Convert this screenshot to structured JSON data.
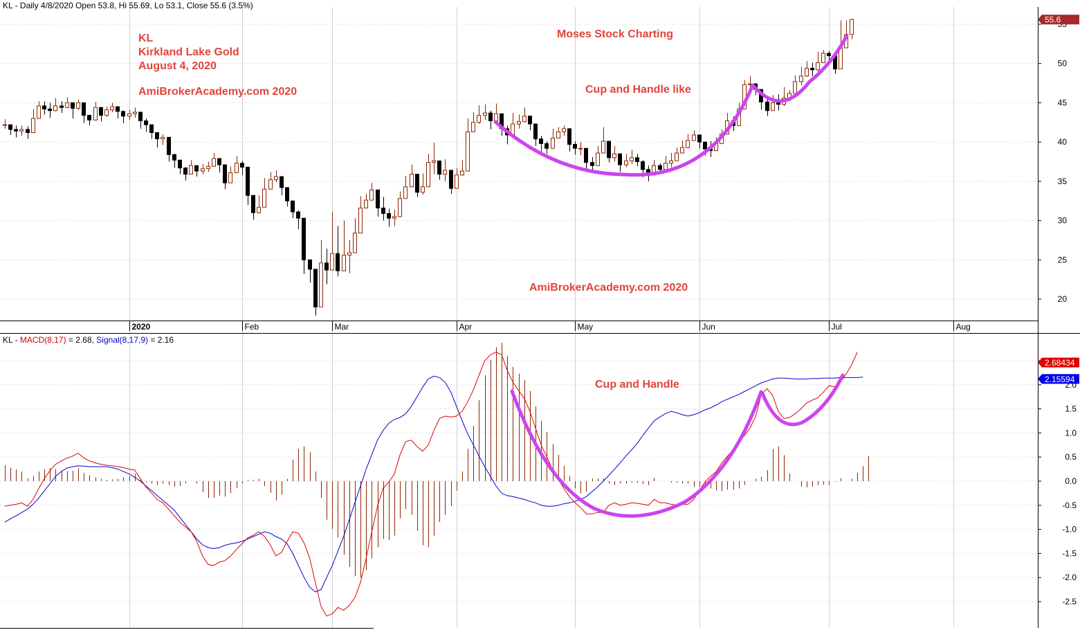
{
  "header": {
    "price_info": "KL - Daily 4/8/2020 Open 53.8, Hi 55.69, Lo 53.1, Close 55.6 (3.5%)",
    "macd_prefix": "KL - ",
    "macd_label": "MACD(8,17)",
    "macd_value": " = 2.68, ",
    "signal_label": "Signal(8,17,9)",
    "signal_value": " = 2.16"
  },
  "annotations": {
    "line1": "KL",
    "line2": "Kirkland Lake Gold",
    "line3": "August 4, 2020",
    "brand1": "AmiBrokerAcademy.com  2020",
    "site_title": "Moses Stock Charting",
    "pattern_upper": "Cup and Handle like",
    "brand2": "AmiBrokerAcademy.com  2020",
    "pattern_lower": "Cup and Handle"
  },
  "colors": {
    "up_candle": "#8b2500",
    "down_candle": "#000000",
    "macd_line": "#e00000",
    "signal_line": "#0000cc",
    "histogram": "#8b2500",
    "pattern_curve": "#cc44ee",
    "annotation_text": "#e0443c",
    "last_price_badge": "#a52a2a",
    "macd_badge": "#e00000",
    "signal_badge": "#0000ee"
  },
  "chart_data": [
    {
      "type": "candlestick",
      "ylim": [
        17.5,
        57
      ],
      "yticks": [
        "55",
        "50",
        "45",
        "40",
        "35",
        "30",
        "25",
        "20"
      ],
      "x_labels": [
        "2020",
        "Feb",
        "Mar",
        "Apr",
        "May",
        "Jun",
        "Jul",
        "Aug"
      ],
      "last_price_badge": "55.6",
      "close": [
        42.2,
        41.6,
        41.4,
        41.6,
        41.2,
        43.0,
        44.6,
        44.2,
        44.0,
        44.6,
        44.4,
        45.0,
        44.3,
        45.0,
        43.4,
        42.8,
        44.4,
        43.4,
        44.1,
        44.5,
        43.9,
        43.3,
        43.6,
        43.8,
        42.7,
        42.2,
        41.2,
        40.4,
        40.6,
        38.4,
        37.7,
        36.7,
        35.9,
        37.0,
        36.3,
        36.6,
        36.9,
        37.9,
        37.1,
        34.8,
        36.1,
        37.3,
        36.8,
        33.2,
        31.0,
        31.7,
        34.0,
        35.2,
        35.6,
        34.2,
        32.5,
        31.1,
        30.3,
        25.0,
        23.8,
        19.0,
        24.6,
        23.7,
        25.8,
        23.6,
        25.6,
        25.9,
        28.4,
        31.6,
        32.6,
        33.9,
        31.6,
        30.9,
        30.3,
        30.5,
        32.8,
        34.3,
        35.9,
        33.6,
        34.3,
        37.4,
        37.6,
        35.9,
        36.4,
        34.1,
        35.8,
        36.3,
        41.3,
        42.5,
        43.4,
        43.7,
        42.7,
        43.6,
        41.7,
        40.9,
        42.3,
        42.6,
        43.3,
        42.3,
        40.4,
        39.8,
        39.2,
        40.5,
        41.3,
        41.7,
        39.7,
        39.2,
        39.2,
        37.4,
        37.0,
        38.6,
        40.1,
        38.0,
        38.5,
        37.1,
        37.6,
        38.0,
        37.5,
        36.5,
        35.8,
        37.0,
        36.5,
        37.3,
        37.6,
        38.6,
        39.3,
        40.2,
        40.9,
        40.0,
        39.1,
        38.9,
        39.8,
        41.0,
        42.7,
        42.1,
        44.2,
        47.3,
        47.4,
        46.7,
        45.1,
        44.0,
        45.0,
        44.8,
        45.6,
        46.2,
        47.7,
        48.4,
        49.4,
        49.2,
        50.1,
        51.3,
        51.0,
        49.3,
        52.0,
        53.7,
        55.6
      ],
      "high": [
        42.9,
        42.2,
        42.1,
        42.1,
        42.0,
        44.2,
        45.2,
        45.2,
        45.0,
        45.6,
        45.2,
        45.7,
        45.0,
        45.4,
        44.1,
        43.5,
        45.1,
        44.1,
        44.5,
        45.0,
        44.4,
        44.0,
        44.1,
        44.4,
        43.5,
        43.0,
        42.0,
        41.1,
        41.0,
        39.3,
        38.5,
        37.5,
        36.8,
        37.7,
        37.0,
        37.2,
        37.5,
        38.6,
        37.8,
        35.9,
        36.9,
        38.2,
        37.6,
        34.4,
        32.5,
        33.2,
        35.4,
        36.2,
        36.4,
        35.6,
        33.9,
        32.5,
        31.3,
        26.2,
        24.9,
        20.2,
        27.5,
        26.4,
        31.1,
        29.3,
        30.0,
        27.5,
        30.3,
        33.1,
        33.4,
        34.8,
        32.7,
        33.0,
        31.5,
        31.4,
        33.7,
        35.7,
        37.1,
        35.0,
        36.0,
        38.5,
        39.9,
        37.0,
        37.8,
        35.6,
        36.7,
        37.7,
        43.0,
        43.8,
        44.7,
        44.8,
        44.0,
        44.9,
        43.0,
        42.1,
        43.7,
        43.5,
        44.4,
        43.2,
        41.6,
        40.8,
        40.1,
        41.7,
        41.9,
        42.1,
        40.7,
        40.1,
        40.0,
        38.6,
        38.1,
        39.5,
        41.9,
        39.2,
        39.5,
        38.4,
        38.5,
        39.0,
        38.5,
        37.7,
        37.0,
        37.7,
        37.3,
        38.2,
        38.6,
        39.3,
        40.2,
        41.0,
        41.5,
        40.7,
        39.7,
        40.1,
        40.6,
        41.6,
        43.7,
        43.3,
        45.0,
        47.9,
        48.4,
        47.5,
        46.4,
        45.5,
        46.0,
        46.1,
        47.0,
        46.6,
        48.5,
        49.6,
        50.3,
        50.1,
        51.5,
        51.7,
        51.6,
        50.7,
        55.5,
        55.5,
        55.69
      ],
      "low": [
        41.7,
        40.9,
        40.6,
        40.8,
        40.4,
        42.3,
        43.5,
        43.5,
        43.1,
        43.9,
        43.7,
        44.3,
        43.0,
        44.1,
        42.4,
        42.1,
        43.5,
        42.6,
        43.2,
        43.8,
        43.0,
        42.4,
        42.8,
        43.1,
        41.7,
        41.3,
        40.4,
        39.3,
        39.6,
        37.5,
        36.7,
        35.9,
        35.1,
        36.1,
        35.6,
        35.9,
        36.2,
        37.1,
        36.1,
        34.0,
        35.1,
        36.5,
        35.8,
        32.0,
        30.1,
        30.9,
        33.0,
        34.6,
        34.9,
        33.2,
        31.8,
        30.3,
        28.9,
        23.2,
        22.1,
        17.9,
        22.1,
        21.9,
        24.5,
        22.9,
        24.7,
        23.3,
        27.8,
        30.0,
        31.6,
        33.1,
        30.5,
        30.0,
        29.2,
        29.3,
        31.6,
        33.8,
        35.0,
        33.0,
        33.3,
        35.7,
        35.9,
        35.2,
        35.0,
        33.4,
        34.4,
        35.7,
        39.4,
        41.4,
        42.3,
        42.8,
        41.6,
        42.3,
        40.8,
        39.7,
        41.4,
        41.7,
        42.5,
        41.5,
        39.5,
        38.8,
        38.5,
        39.4,
        40.5,
        40.8,
        38.8,
        38.4,
        38.3,
        36.6,
        36.2,
        37.4,
        38.9,
        37.4,
        37.5,
        36.2,
        36.8,
        37.2,
        36.9,
        35.5,
        35.0,
        36.2,
        35.9,
        36.7,
        36.8,
        37.9,
        38.6,
        39.2,
        40.2,
        39.2,
        38.3,
        38.1,
        38.9,
        40.4,
        41.6,
        41.4,
        42.9,
        45.2,
        46.4,
        46.0,
        44.1,
        43.3,
        44.2,
        44.0,
        44.6,
        45.2,
        46.8,
        47.2,
        48.3,
        48.4,
        48.9,
        50.6,
        50.5,
        48.7,
        51.5,
        53.1,
        53.1
      ]
    },
    {
      "type": "line+bar",
      "ylim": [
        -3.0,
        3.0
      ],
      "yticks": [
        "2.5",
        "2.0",
        "1.5",
        "1.0",
        "0.5",
        "0.0",
        "-0.5",
        "-1.0",
        "-1.5",
        "-2.0",
        "-2.5"
      ],
      "last_macd_badge": "2.68434",
      "last_signal_badge": "2.15594",
      "series": [
        {
          "name": "MACD(8,17)",
          "values": [
            -0.52,
            -0.5,
            -0.48,
            -0.45,
            -0.52,
            -0.38,
            -0.15,
            0.05,
            0.22,
            0.35,
            0.42,
            0.48,
            0.52,
            0.58,
            0.48,
            0.42,
            0.38,
            0.35,
            0.33,
            0.32,
            0.3,
            0.28,
            0.25,
            0.23,
            0.05,
            -0.12,
            -0.25,
            -0.38,
            -0.45,
            -0.58,
            -0.72,
            -0.85,
            -0.95,
            -1.05,
            -1.25,
            -1.55,
            -1.73,
            -1.75,
            -1.68,
            -1.65,
            -1.55,
            -1.42,
            -1.3,
            -1.18,
            -1.12,
            -1.05,
            -1.15,
            -1.32,
            -1.55,
            -1.48,
            -1.25,
            -1.05,
            -1.08,
            -1.28,
            -1.6,
            -2.1,
            -2.6,
            -2.8,
            -2.75,
            -2.62,
            -2.68,
            -2.58,
            -2.42,
            -2.1,
            -1.6,
            -1.05,
            -0.52,
            -0.15,
            -0.02,
            0.15,
            0.55,
            0.82,
            0.85,
            0.72,
            0.62,
            0.75,
            1.05,
            1.3,
            1.35,
            1.33,
            1.35,
            1.45,
            1.65,
            1.9,
            2.2,
            2.5,
            2.62,
            2.68,
            2.62,
            2.3,
            2.05,
            1.88,
            1.72,
            1.45,
            1.1,
            0.75,
            0.5,
            0.25,
            0.05,
            -0.15,
            -0.32,
            -0.45,
            -0.55,
            -0.68,
            -0.68,
            -0.65,
            -0.65,
            -0.5,
            -0.45,
            -0.5,
            -0.48,
            -0.45,
            -0.46,
            -0.48,
            -0.5,
            -0.38,
            -0.45,
            -0.45,
            -0.48,
            -0.5,
            -0.48,
            -0.48,
            -0.38,
            -0.2,
            -0.02,
            0.1,
            0.2,
            0.38,
            0.52,
            0.65,
            0.8,
            0.95,
            1.1,
            1.35,
            1.8,
            1.92,
            1.78,
            1.45,
            1.3,
            1.32,
            1.4,
            1.5,
            1.62,
            1.68,
            1.73,
            1.85,
            1.98,
            1.96,
            2.05,
            2.22,
            2.42,
            2.68
          ]
        },
        {
          "name": "Signal(8,17,9)",
          "values": [
            -0.85,
            -0.78,
            -0.72,
            -0.65,
            -0.58,
            -0.48,
            -0.35,
            -0.2,
            -0.05,
            0.1,
            0.2,
            0.27,
            0.3,
            0.32,
            0.31,
            0.3,
            0.3,
            0.3,
            0.3,
            0.28,
            0.25,
            0.2,
            0.15,
            0.08,
            0.0,
            -0.1,
            -0.2,
            -0.3,
            -0.4,
            -0.5,
            -0.6,
            -0.75,
            -0.9,
            -1.05,
            -1.2,
            -1.32,
            -1.38,
            -1.4,
            -1.38,
            -1.33,
            -1.3,
            -1.28,
            -1.25,
            -1.2,
            -1.15,
            -1.1,
            -1.05,
            -1.08,
            -1.15,
            -1.2,
            -1.3,
            -1.5,
            -1.75,
            -2.0,
            -2.2,
            -2.3,
            -2.25,
            -2.0,
            -1.75,
            -1.45,
            -1.15,
            -0.8,
            -0.45,
            -0.1,
            0.25,
            0.55,
            0.85,
            1.05,
            1.2,
            1.28,
            1.32,
            1.4,
            1.55,
            1.75,
            1.95,
            2.12,
            2.18,
            2.15,
            2.05,
            1.85,
            1.55,
            1.25,
            0.98,
            0.75,
            0.52,
            0.3,
            0.1,
            -0.1,
            -0.25,
            -0.3,
            -0.32,
            -0.35,
            -0.38,
            -0.42,
            -0.45,
            -0.5,
            -0.52,
            -0.52,
            -0.5,
            -0.47,
            -0.45,
            -0.42,
            -0.38,
            -0.32,
            -0.22,
            -0.12,
            0.0,
            0.12,
            0.25,
            0.38,
            0.52,
            0.65,
            0.78,
            0.95,
            1.1,
            1.25,
            1.33,
            1.4,
            1.45,
            1.42,
            1.38,
            1.35,
            1.38,
            1.42,
            1.48,
            1.52,
            1.58,
            1.65,
            1.7,
            1.75,
            1.8,
            1.86,
            1.92,
            1.98,
            2.04,
            2.08,
            2.12,
            2.14,
            2.14,
            2.13,
            2.12,
            2.12,
            2.12,
            2.13,
            2.13,
            2.14,
            2.14,
            2.14,
            2.15,
            2.15,
            2.15,
            2.15,
            2.16
          ]
        }
      ],
      "histogram": [
        0.33,
        0.28,
        0.24,
        0.2,
        0.06,
        0.1,
        0.2,
        0.25,
        0.27,
        0.25,
        0.22,
        0.21,
        0.22,
        0.26,
        0.17,
        0.12,
        0.08,
        0.05,
        0.03,
        0.04,
        0.05,
        0.08,
        0.1,
        0.15,
        0.05,
        -0.02,
        -0.05,
        -0.08,
        -0.05,
        -0.08,
        -0.12,
        -0.1,
        -0.05,
        0.0,
        -0.05,
        -0.23,
        -0.35,
        -0.35,
        -0.3,
        -0.32,
        -0.25,
        -0.14,
        -0.05,
        0.02,
        0.03,
        0.05,
        -0.1,
        -0.24,
        -0.4,
        -0.28,
        0.05,
        0.45,
        0.67,
        0.72,
        0.6,
        0.2,
        -0.35,
        -0.8,
        -1.0,
        -1.17,
        -1.53,
        -1.78,
        -1.97,
        -2.0,
        -1.85,
        -1.6,
        -1.37,
        -1.2,
        -1.22,
        -1.13,
        -0.77,
        -0.58,
        -0.7,
        -1.03,
        -1.33,
        -1.37,
        -1.13,
        -0.85,
        -0.7,
        -0.52,
        -0.2,
        0.2,
        0.67,
        1.15,
        1.68,
        2.2,
        2.52,
        2.78,
        2.87,
        2.6,
        2.37,
        2.23,
        2.1,
        1.87,
        1.55,
        1.25,
        1.02,
        0.77,
        0.55,
        0.32,
        0.1,
        -0.15,
        -0.25,
        -0.22,
        0.05,
        0.06,
        0.06,
        -0.05,
        -0.08,
        -0.05,
        -0.05,
        -0.03,
        -0.04,
        -0.06,
        -0.08,
        0.07,
        0.0,
        0.0,
        -0.03,
        -0.03,
        -0.05,
        -0.05,
        -0.12,
        -0.13,
        -0.12,
        -0.15,
        -0.19,
        -0.21,
        -0.18,
        -0.18,
        -0.15,
        -0.08,
        0.0,
        0.05,
        0.09,
        0.23,
        0.67,
        0.72,
        0.54,
        0.16,
        0.0,
        -0.11,
        -0.13,
        -0.11,
        -0.08,
        -0.07,
        -0.08,
        -0.01,
        0.06,
        0.0,
        0.05,
        0.17,
        0.31,
        0.52
      ]
    }
  ]
}
